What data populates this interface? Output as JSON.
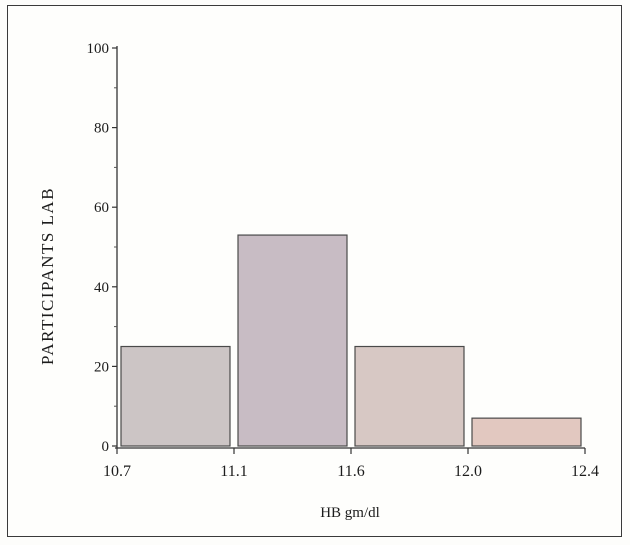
{
  "chart_data": {
    "type": "bar",
    "title": "",
    "xlabel": "HB gm/dl",
    "ylabel": "PARTICIPANTS LAB",
    "bin_edges": [
      10.7,
      11.1,
      11.6,
      12.0,
      12.4
    ],
    "x_tick_labels": [
      "10.7",
      "11.1",
      "11.6",
      "12.0",
      "12.4"
    ],
    "values": [
      25,
      53,
      25,
      7
    ],
    "ylim": [
      0,
      100
    ],
    "y_ticks": [
      0,
      20,
      40,
      60,
      80,
      100
    ],
    "y_tick_labels": [
      "0",
      "20",
      "40",
      "60",
      "80",
      "100"
    ],
    "grid": false,
    "bar_colors": [
      "#ccc5c5",
      "#c8bcc4",
      "#d7c8c4",
      "#e2c8c0"
    ],
    "bar_stroke": "#4a4a4a"
  }
}
